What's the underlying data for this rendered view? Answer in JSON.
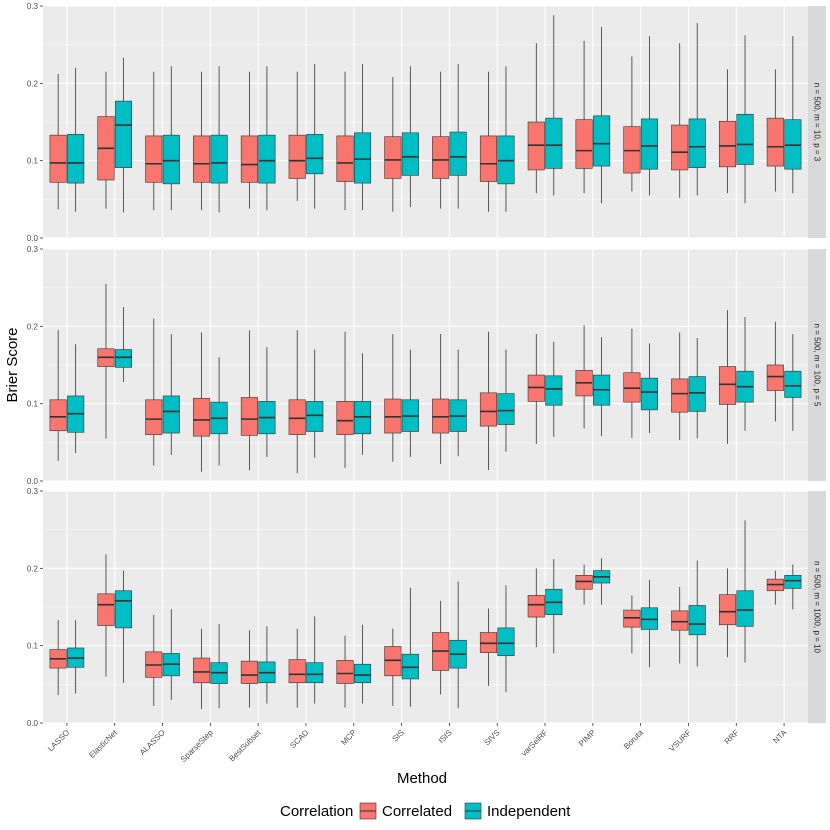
{
  "chart_data": {
    "type": "boxplot",
    "xlabel": "Method",
    "ylabel": "Brier Score",
    "ylim": [
      0,
      0.3
    ],
    "yticks": [
      "0.0",
      "0.1",
      "0.2",
      "0.3"
    ],
    "categories": [
      "LASSO",
      "ElasticNet",
      "ALASSO",
      "SparseStep",
      "BestSubset",
      "SCAD",
      "MCP",
      "SIS",
      "ISIS",
      "SIVS",
      "varSelRF",
      "PIMP",
      "Boruta",
      "VSURF",
      "RRF",
      "NTA"
    ],
    "legend": {
      "title": "Correlation",
      "position": "bottom",
      "entries": [
        {
          "name": "Correlated",
          "color": "#F8766D"
        },
        {
          "name": "Independent",
          "color": "#00BFC4"
        }
      ]
    },
    "series_colors": {
      "Correlated": "#F8766D",
      "Independent": "#00BFC4"
    },
    "panels": [
      {
        "strip_label": "n = 500, m = 10, p = 3",
        "boxes": {
          "Correlated": [
            [
              0.037,
              0.072,
              0.097,
              0.133,
              0.212
            ],
            [
              0.038,
              0.075,
              0.116,
              0.157,
              0.215
            ],
            [
              0.036,
              0.072,
              0.096,
              0.132,
              0.215
            ],
            [
              0.036,
              0.072,
              0.096,
              0.132,
              0.215
            ],
            [
              0.038,
              0.072,
              0.095,
              0.132,
              0.215
            ],
            [
              0.048,
              0.077,
              0.1,
              0.133,
              0.215
            ],
            [
              0.036,
              0.073,
              0.097,
              0.132,
              0.215
            ],
            [
              0.034,
              0.077,
              0.101,
              0.131,
              0.208
            ],
            [
              0.038,
              0.077,
              0.101,
              0.131,
              0.215
            ],
            [
              0.034,
              0.073,
              0.096,
              0.132,
              0.215
            ],
            [
              0.058,
              0.088,
              0.12,
              0.15,
              0.252
            ],
            [
              0.058,
              0.09,
              0.113,
              0.153,
              0.255
            ],
            [
              0.06,
              0.084,
              0.113,
              0.144,
              0.235
            ],
            [
              0.052,
              0.088,
              0.111,
              0.146,
              0.252
            ],
            [
              0.058,
              0.092,
              0.119,
              0.151,
              0.218
            ],
            [
              0.06,
              0.093,
              0.118,
              0.155,
              0.218
            ]
          ],
          "Independent": [
            [
              0.034,
              0.071,
              0.097,
              0.134,
              0.22
            ],
            [
              0.033,
              0.091,
              0.146,
              0.177,
              0.233
            ],
            [
              0.036,
              0.07,
              0.1,
              0.133,
              0.222
            ],
            [
              0.033,
              0.071,
              0.097,
              0.133,
              0.222
            ],
            [
              0.036,
              0.071,
              0.1,
              0.133,
              0.222
            ],
            [
              0.038,
              0.083,
              0.103,
              0.134,
              0.225
            ],
            [
              0.036,
              0.071,
              0.102,
              0.136,
              0.225
            ],
            [
              0.04,
              0.081,
              0.105,
              0.136,
              0.222
            ],
            [
              0.038,
              0.081,
              0.105,
              0.137,
              0.225
            ],
            [
              0.034,
              0.07,
              0.1,
              0.132,
              0.222
            ],
            [
              0.055,
              0.09,
              0.12,
              0.155,
              0.288
            ],
            [
              0.045,
              0.093,
              0.122,
              0.158,
              0.273
            ],
            [
              0.055,
              0.089,
              0.119,
              0.154,
              0.261
            ],
            [
              0.055,
              0.091,
              0.118,
              0.154,
              0.278
            ],
            [
              0.045,
              0.095,
              0.121,
              0.16,
              0.262
            ],
            [
              0.058,
              0.089,
              0.12,
              0.153,
              0.261
            ]
          ]
        }
      },
      {
        "strip_label": "n = 500, m = 100, p = 5",
        "boxes": {
          "Correlated": [
            [
              0.026,
              0.065,
              0.083,
              0.105,
              0.195
            ],
            [
              0.055,
              0.148,
              0.16,
              0.171,
              0.255
            ],
            [
              0.02,
              0.06,
              0.08,
              0.105,
              0.21
            ],
            [
              0.012,
              0.058,
              0.079,
              0.107,
              0.192
            ],
            [
              0.014,
              0.059,
              0.08,
              0.108,
              0.195
            ],
            [
              0.01,
              0.06,
              0.081,
              0.105,
              0.195
            ],
            [
              0.017,
              0.06,
              0.078,
              0.103,
              0.193
            ],
            [
              0.025,
              0.062,
              0.083,
              0.106,
              0.19
            ],
            [
              0.022,
              0.062,
              0.083,
              0.106,
              0.19
            ],
            [
              0.014,
              0.071,
              0.09,
              0.114,
              0.193
            ],
            [
              0.048,
              0.103,
              0.121,
              0.137,
              0.19
            ],
            [
              0.068,
              0.11,
              0.127,
              0.143,
              0.201
            ],
            [
              0.056,
              0.102,
              0.12,
              0.14,
              0.197
            ],
            [
              0.053,
              0.089,
              0.113,
              0.132,
              0.192
            ],
            [
              0.048,
              0.099,
              0.125,
              0.148,
              0.221
            ],
            [
              0.077,
              0.117,
              0.135,
              0.15,
              0.206
            ]
          ],
          "Independent": [
            [
              0.036,
              0.063,
              0.087,
              0.11,
              0.177
            ],
            [
              0.128,
              0.147,
              0.16,
              0.17,
              0.225
            ],
            [
              0.034,
              0.062,
              0.09,
              0.11,
              0.19
            ],
            [
              0.02,
              0.061,
              0.081,
              0.102,
              0.16
            ],
            [
              0.031,
              0.061,
              0.082,
              0.103,
              0.173
            ],
            [
              0.03,
              0.064,
              0.085,
              0.103,
              0.17
            ],
            [
              0.034,
              0.061,
              0.083,
              0.103,
              0.165
            ],
            [
              0.031,
              0.064,
              0.084,
              0.105,
              0.17
            ],
            [
              0.032,
              0.064,
              0.084,
              0.105,
              0.17
            ],
            [
              0.038,
              0.073,
              0.091,
              0.113,
              0.17
            ],
            [
              0.057,
              0.098,
              0.119,
              0.136,
              0.18
            ],
            [
              0.058,
              0.098,
              0.118,
              0.137,
              0.186
            ],
            [
              0.062,
              0.092,
              0.115,
              0.133,
              0.178
            ],
            [
              0.055,
              0.09,
              0.114,
              0.135,
              0.185
            ],
            [
              0.065,
              0.102,
              0.122,
              0.142,
              0.212
            ],
            [
              0.065,
              0.108,
              0.123,
              0.142,
              0.19
            ]
          ]
        }
      },
      {
        "strip_label": "n = 500, m = 1000, p = 10",
        "boxes": {
          "Correlated": [
            [
              0.036,
              0.071,
              0.083,
              0.095,
              0.133
            ],
            [
              0.06,
              0.126,
              0.153,
              0.167,
              0.218
            ],
            [
              0.022,
              0.059,
              0.075,
              0.092,
              0.14
            ],
            [
              0.018,
              0.052,
              0.066,
              0.084,
              0.122
            ],
            [
              0.02,
              0.051,
              0.062,
              0.08,
              0.12
            ],
            [
              0.02,
              0.052,
              0.063,
              0.082,
              0.122
            ],
            [
              0.02,
              0.051,
              0.064,
              0.081,
              0.113
            ],
            [
              0.022,
              0.061,
              0.081,
              0.099,
              0.122
            ],
            [
              0.037,
              0.068,
              0.093,
              0.117,
              0.158
            ],
            [
              0.048,
              0.091,
              0.103,
              0.117,
              0.148
            ],
            [
              0.098,
              0.137,
              0.153,
              0.165,
              0.2
            ],
            [
              0.153,
              0.173,
              0.183,
              0.191,
              0.205
            ],
            [
              0.09,
              0.124,
              0.136,
              0.146,
              0.165
            ],
            [
              0.077,
              0.12,
              0.131,
              0.145,
              0.176
            ],
            [
              0.085,
              0.127,
              0.144,
              0.166,
              0.2
            ],
            [
              0.153,
              0.171,
              0.179,
              0.186,
              0.197
            ]
          ],
          "Independent": [
            [
              0.038,
              0.072,
              0.084,
              0.097,
              0.133
            ],
            [
              0.052,
              0.123,
              0.158,
              0.171,
              0.197
            ],
            [
              0.03,
              0.061,
              0.076,
              0.09,
              0.147
            ],
            [
              0.019,
              0.051,
              0.065,
              0.078,
              0.128
            ],
            [
              0.025,
              0.052,
              0.065,
              0.079,
              0.125
            ],
            [
              0.025,
              0.052,
              0.063,
              0.078,
              0.138
            ],
            [
              0.025,
              0.052,
              0.062,
              0.076,
              0.127
            ],
            [
              0.021,
              0.057,
              0.072,
              0.089,
              0.175
            ],
            [
              0.019,
              0.071,
              0.089,
              0.107,
              0.183
            ],
            [
              0.04,
              0.087,
              0.103,
              0.123,
              0.178
            ],
            [
              0.09,
              0.14,
              0.156,
              0.173,
              0.212
            ],
            [
              0.153,
              0.181,
              0.189,
              0.197,
              0.213
            ],
            [
              0.072,
              0.121,
              0.134,
              0.149,
              0.185
            ],
            [
              0.073,
              0.114,
              0.128,
              0.152,
              0.21
            ],
            [
              0.078,
              0.125,
              0.146,
              0.171,
              0.262
            ],
            [
              0.147,
              0.174,
              0.184,
              0.191,
              0.205
            ]
          ]
        }
      }
    ]
  }
}
